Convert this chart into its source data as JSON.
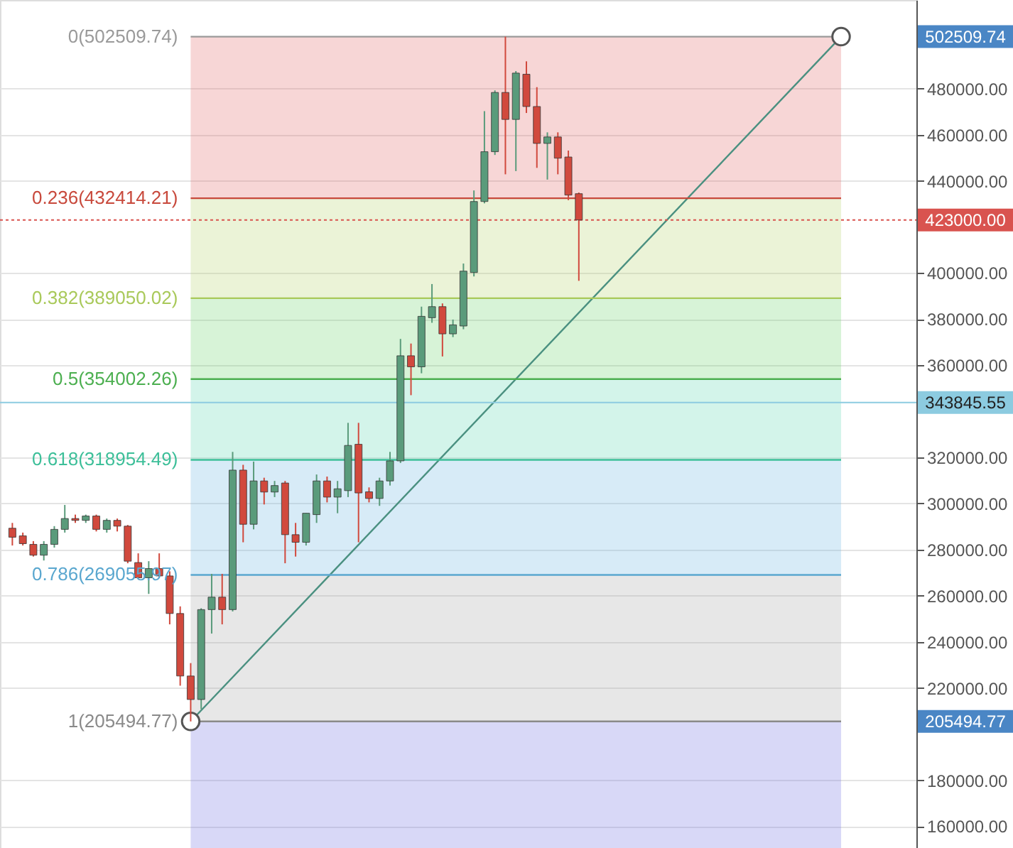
{
  "chart_data": {
    "type": "candlestick",
    "categories": [
      null,
      null,
      null,
      null,
      null,
      null,
      null,
      null,
      null,
      null,
      null,
      null,
      null,
      null,
      null,
      null,
      null,
      null,
      null,
      null,
      null,
      null,
      null,
      null,
      null,
      null,
      null,
      null,
      null,
      null,
      null,
      null,
      null,
      null,
      null,
      null,
      null,
      null,
      null,
      null,
      null,
      null,
      null,
      null,
      null,
      null,
      null,
      null,
      null,
      null,
      null,
      null,
      null,
      null,
      null,
      null,
      null,
      null,
      null,
      null,
      null,
      null,
      null,
      null,
      null,
      null,
      null,
      null,
      null,
      null,
      null,
      null,
      null,
      null,
      null,
      null,
      null,
      null,
      null,
      null,
      null,
      null,
      null,
      null,
      null,
      null
    ],
    "ohlc": [
      [
        289300,
        291600,
        281800,
        285400
      ],
      [
        286000,
        287400,
        281800,
        282600
      ],
      [
        282300,
        283700,
        277000,
        277600
      ],
      [
        277600,
        283700,
        275300,
        282300
      ],
      [
        282300,
        290200,
        280900,
        288800
      ],
      [
        288800,
        299400,
        287400,
        293500
      ],
      [
        293500,
        295200,
        291600,
        292700
      ],
      [
        292700,
        295200,
        291600,
        294600
      ],
      [
        294600,
        295200,
        287900,
        288800
      ],
      [
        288800,
        293500,
        287400,
        292700
      ],
      [
        292700,
        293500,
        287900,
        290200
      ],
      [
        290200,
        290700,
        274100,
        275000
      ],
      [
        274400,
        278400,
        267800,
        267800
      ],
      [
        267800,
        275000,
        260800,
        271800
      ],
      [
        271800,
        278400,
        267800,
        268600
      ],
      [
        268600,
        270600,
        247600,
        252300
      ],
      [
        252300,
        255400,
        221000,
        225200
      ],
      [
        225200,
        230800,
        205500,
        215000
      ],
      [
        215000,
        254600,
        210800,
        254000
      ],
      [
        254000,
        269500,
        243600,
        259400
      ],
      [
        259400,
        269500,
        247600,
        254000
      ],
      [
        254000,
        322400,
        253200,
        314500
      ],
      [
        314500,
        316800,
        283200,
        291000
      ],
      [
        291000,
        318200,
        288800,
        309800
      ],
      [
        309800,
        311200,
        299600,
        305000
      ],
      [
        305000,
        309800,
        302800,
        307800
      ],
      [
        308900,
        309800,
        274100,
        286500
      ],
      [
        286500,
        291600,
        277000,
        283200
      ],
      [
        283200,
        295800,
        281800,
        295800
      ],
      [
        295200,
        312600,
        291600,
        309800
      ],
      [
        309800,
        311700,
        300500,
        302800
      ],
      [
        302800,
        309800,
        295800,
        306400
      ],
      [
        305600,
        335000,
        302800,
        325200
      ],
      [
        325700,
        335000,
        283200,
        304600
      ],
      [
        305100,
        307000,
        300500,
        302200
      ],
      [
        302200,
        311200,
        299000,
        309800
      ],
      [
        309800,
        322400,
        307800,
        318500
      ],
      [
        318500,
        371400,
        317600,
        364100
      ],
      [
        364100,
        369400,
        347000,
        359300
      ],
      [
        359300,
        385400,
        356500,
        381200
      ],
      [
        380600,
        395200,
        378400,
        385400
      ],
      [
        385400,
        386800,
        363800,
        373600
      ],
      [
        373600,
        379800,
        372200,
        377500
      ],
      [
        377000,
        404100,
        375600,
        400800
      ],
      [
        400200,
        435800,
        398500,
        431000
      ],
      [
        431000,
        470200,
        430200,
        452600
      ],
      [
        452600,
        479200,
        451200,
        478300
      ],
      [
        478300,
        502500,
        442800,
        466600
      ],
      [
        466600,
        487600,
        444200,
        486700
      ],
      [
        486200,
        491800,
        469400,
        472200
      ],
      [
        472200,
        480600,
        445600,
        456200
      ],
      [
        456200,
        461000,
        440500,
        459000
      ],
      [
        459000,
        461000,
        442800,
        449800
      ],
      [
        450300,
        453100,
        431600,
        433800
      ],
      [
        434400,
        434900,
        396600,
        423000
      ],
      null,
      null,
      null,
      null,
      null,
      null,
      null,
      null,
      null,
      null,
      null,
      null,
      null,
      null,
      null,
      null,
      null,
      null,
      null,
      null,
      null,
      null,
      null,
      null,
      null,
      null,
      null,
      null,
      null,
      null,
      null
    ],
    "colors": [
      "#d1493d",
      "#d1493d",
      "#d1493d",
      "#5a9b7b",
      "#5a9b7b",
      "#5a9b7b",
      "#d1493d",
      "#5a9b7b",
      "#d1493d",
      "#5a9b7b",
      "#d1493d",
      "#d1493d",
      "#d1493d",
      "#5a9b7b",
      "#d1493d",
      "#d1493d",
      "#d1493d",
      "#d1493d",
      "#5a9b7b",
      "#5a9b7b",
      "#d1493d",
      "#5a9b7b",
      "#d1493d",
      "#5a9b7b",
      "#d1493d",
      "#5a9b7b",
      "#d1493d",
      "#d1493d",
      "#5a9b7b",
      "#5a9b7b",
      "#d1493d",
      "#5a9b7b",
      "#5a9b7b",
      "#d1493d",
      "#d1493d",
      "#5a9b7b",
      "#5a9b7b",
      "#5a9b7b",
      "#d1493d",
      "#5a9b7b",
      "#5a9b7b",
      "#d1493d",
      "#5a9b7b",
      "#5a9b7b",
      "#5a9b7b",
      "#5a9b7b",
      "#5a9b7b",
      "#d1493d",
      "#5a9b7b",
      "#d1493d",
      "#d1493d",
      "#5a9b7b",
      "#d1493d",
      "#d1493d",
      "#d1493d",
      null,
      null,
      null,
      null,
      null,
      null,
      null,
      null,
      null,
      null,
      null,
      null,
      null,
      null,
      null,
      null,
      null,
      null,
      null,
      null,
      null,
      null,
      null,
      null,
      null,
      null,
      null,
      null,
      null,
      null,
      null
    ],
    "series": [
      {
        "type": "line",
        "values": [
          null,
          null,
          null,
          null,
          null,
          null,
          null,
          null,
          null,
          null,
          null,
          null,
          null,
          null,
          null,
          null,
          null,
          205494.77,
          null,
          null,
          null,
          null,
          null,
          null,
          null,
          null,
          null,
          null,
          null,
          null,
          null,
          null,
          null,
          null,
          null,
          null,
          null,
          null,
          null,
          null,
          null,
          null,
          null,
          null,
          null,
          null,
          null,
          null,
          null,
          null,
          null,
          null,
          null,
          null,
          null,
          null,
          null,
          null,
          null,
          null,
          null,
          null,
          null,
          null,
          null,
          null,
          null,
          null,
          null,
          null,
          null,
          null,
          null,
          null,
          null,
          null,
          null,
          null,
          null,
          502509.74,
          null,
          null,
          null,
          null,
          null,
          null
        ],
        "color": "#4a9080"
      }
    ],
    "marker": "circle",
    "ylim": [
      150600,
      518400
    ],
    "yticks": [
      {
        "value": 160000,
        "label": "160000.00"
      },
      {
        "value": 180000,
        "label": "180000.00"
      },
      {
        "value": 220000,
        "label": "220000.00"
      },
      {
        "value": 240000,
        "label": "240000.00"
      },
      {
        "value": 260000,
        "label": "260000.00"
      },
      {
        "value": 280000,
        "label": "280000.00"
      },
      {
        "value": 300000,
        "label": "300000.00"
      },
      {
        "value": 320000,
        "label": "320000.00"
      },
      {
        "value": 360000,
        "label": "360000.00"
      },
      {
        "value": 380000,
        "label": "380000.00"
      },
      {
        "value": 400000,
        "label": "400000.00"
      },
      {
        "value": 440000,
        "label": "440000.00"
      },
      {
        "value": 460000,
        "label": "460000.00"
      },
      {
        "value": 480000,
        "label": "480000.00"
      }
    ],
    "tick_labels": "y",
    "grid": "y",
    "bands": [
      {
        "axis": "y",
        "from": 432414.21,
        "to": 502509.74,
        "color": "#e06666"
      },
      {
        "axis": "y",
        "from": 389050.02,
        "to": 432414.21,
        "color": "#b6d36a"
      },
      {
        "axis": "y",
        "from": 354002.26,
        "to": 389050.02,
        "color": "#6cd36a"
      },
      {
        "axis": "y",
        "from": 318954.49,
        "to": 354002.26,
        "color": "#5cd6b0"
      },
      {
        "axis": "y",
        "from": 269055.97,
        "to": 318954.49,
        "color": "#6cb4e0"
      },
      {
        "axis": "y",
        "from": 205494.77,
        "to": 269055.97,
        "color": "#a8a8a8"
      },
      {
        "axis": "y",
        "from": 150600,
        "to": 205494.77,
        "color": "#6f6fe0"
      }
    ],
    "ref_lines": [
      {
        "axis": "y",
        "value": 502509.74,
        "label": "0(502509.74)",
        "color": "#9a9a9a"
      },
      {
        "axis": "y",
        "value": 432414.21,
        "label": "0.236(432414.21)",
        "color": "#c8493c"
      },
      {
        "axis": "y",
        "value": 389050.02,
        "label": "0.382(389050.02)",
        "color": "#a9c95a"
      },
      {
        "axis": "y",
        "value": 354002.26,
        "label": "0.5(354002.26)",
        "color": "#4caf50"
      },
      {
        "axis": "y",
        "value": 318954.49,
        "label": "0.618(318954.49)",
        "color": "#3dbf99"
      },
      {
        "axis": "y",
        "value": 269055.97,
        "label": "0.786(269055.97)",
        "color": "#5aa7cf"
      },
      {
        "axis": "y",
        "value": 205494.77,
        "label": "1(205494.77)",
        "color": "#8a8a8a"
      },
      {
        "axis": "y",
        "value": 423000,
        "label": "423000.00",
        "color": "#d9534f",
        "line_style": "dotted"
      },
      {
        "axis": "y",
        "value": 343845.55,
        "label": "343845.55",
        "color": "#8ccbe0",
        "line_style": "solid"
      }
    ],
    "annotations": [
      "502509.74",
      "205494.77"
    ]
  }
}
